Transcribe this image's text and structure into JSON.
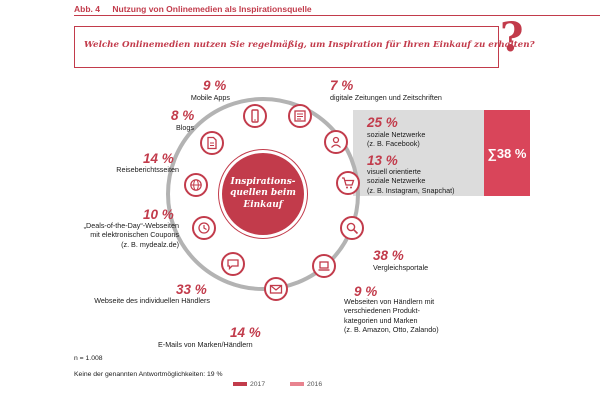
{
  "figure": {
    "number": "Abb. 4",
    "title": "Nutzung von Onlinemedien als Inspirationsquelle"
  },
  "question": "Welche Onlinemedien nutzen Sie regelmäßig, um Inspiration für Ihren Einkauf zu erhalten?",
  "question_mark": "?",
  "center": "Inspirations-\nquellen beim\nEinkauf",
  "sum": {
    "label": "∑38 %"
  },
  "colors": {
    "accent": "#c23b4b",
    "sum_box": "#d9455a",
    "panel": "#dcdcdc",
    "ring": "#b3b3b3"
  },
  "chart_data": {
    "type": "diagram",
    "title": "Nutzung von Onlinemedien als Inspirationsquelle",
    "items": [
      {
        "name": "Mobile Apps",
        "value": 9,
        "icon": "mobile-icon"
      },
      {
        "name": "digitale Zeitungen und Zeitschriften",
        "value": 7,
        "icon": "newspaper-icon"
      },
      {
        "name": "soziale Netzwerke (z. B. Facebook)",
        "value": 25,
        "icon": "social-icon"
      },
      {
        "name": "visuell orientierte soziale Netzwerke (z. B. Instagram, Snapchat)",
        "value": 13,
        "icon": "cart-icon"
      },
      {
        "name": "Vergleichsportale",
        "value": 38,
        "icon": "magnifier-icon"
      },
      {
        "name": "Webseiten von Händlern mit verschiedenen Produktkategorien und Marken (z. B. Amazon, Otto, Zalando)",
        "value": 9,
        "icon": "laptop-icon"
      },
      {
        "name": "E-Mails von Marken/Händlern",
        "value": 14,
        "icon": "mail-icon"
      },
      {
        "name": "Webseite des individuellen Händlers",
        "value": 33,
        "icon": "chat-icon"
      },
      {
        "name": "„Deals-of-the-Day“-Webseiten mit elektronischen Coupons (z. B. mydealz.de)",
        "value": 10,
        "icon": "clock-icon"
      },
      {
        "name": "Reiseberichtsseiten",
        "value": 14,
        "icon": "globe-icon"
      },
      {
        "name": "Blogs",
        "value": 8,
        "icon": "document-icon"
      }
    ],
    "sum": 38
  },
  "items": [
    {
      "pct": "9 %",
      "label": "Mobile Apps"
    },
    {
      "pct": "7 %",
      "label": "digitale Zeitungen und Zeitschriften"
    },
    {
      "pct": "25 %",
      "label": "soziale Netzwerke\n(z. B. Facebook)"
    },
    {
      "pct": "13 %",
      "label": "visuell orientierte\nsoziale Netzwerke\n(z. B. Instagram, Snapchat)"
    },
    {
      "pct": "38 %",
      "label": "Vergleichsportale"
    },
    {
      "pct": "9 %",
      "label": "Webseiten von Händlern mit\nverschiedenen Produkt-\nkategorien und Marken\n(z. B. Amazon, Otto, Zalando)"
    },
    {
      "pct": "14 %",
      "label": "E-Mails von Marken/Händlern"
    },
    {
      "pct": "33 %",
      "label": "Webseite des individuellen Händlers"
    },
    {
      "pct": "10 %",
      "label": "„Deals-of-the-Day“-Webseiten\nmit elektronischen Coupons\n(z. B. mydealz.de)"
    },
    {
      "pct": "14 %",
      "label": "Reiseberichtsseiten"
    },
    {
      "pct": "8 %",
      "label": "Blogs"
    }
  ],
  "footer": {
    "n": "n = 1.008",
    "none": "Keine der genannten Antwortmöglichkeiten: 19 %",
    "legend": [
      {
        "label": "2017"
      },
      {
        "label": "2016"
      }
    ]
  }
}
